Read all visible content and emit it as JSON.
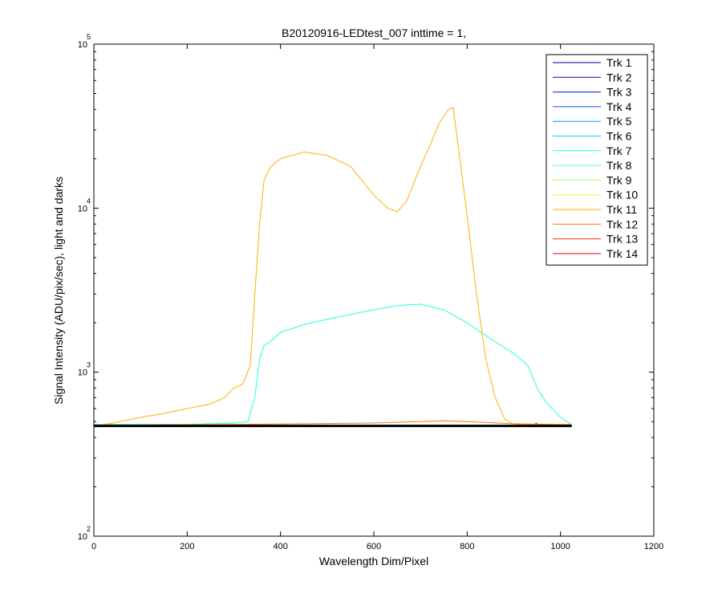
{
  "chart_data": {
    "type": "line",
    "title": "B20120916-LEDtest_007 inttime = 1,",
    "xlabel": "Wavelength Dim/Pixel",
    "ylabel": "Signal Intensity (ADU/pix/sec), light and darks",
    "xlim": [
      0,
      1200
    ],
    "ylim": [
      100,
      100000
    ],
    "yscale": "log",
    "x_ticks": [
      0,
      200,
      400,
      600,
      800,
      1000,
      1200
    ],
    "x_tick_labels": [
      "0",
      "200",
      "400",
      "600",
      "800",
      "1000",
      "1200"
    ],
    "y_ticks": [
      {
        "value": 100,
        "base": "10",
        "exp": "2"
      },
      {
        "value": 1000,
        "base": "10",
        "exp": "3"
      },
      {
        "value": 10000,
        "base": "10",
        "exp": "4"
      },
      {
        "value": 100000,
        "base": "10",
        "exp": "5"
      }
    ],
    "grid": false,
    "legend_position": "top-right",
    "series": [
      {
        "name": "Trk 1",
        "color": "#00008F",
        "x": [
          0,
          1024
        ],
        "y": [
          470,
          470
        ]
      },
      {
        "name": "Trk 2",
        "color": "#0000CF",
        "x": [
          0,
          1024
        ],
        "y": [
          470,
          470
        ]
      },
      {
        "name": "Trk 3",
        "color": "#0010FF",
        "x": [
          0,
          1024
        ],
        "y": [
          470,
          470
        ]
      },
      {
        "name": "Trk 4",
        "color": "#0050FF",
        "x": [
          0,
          1024
        ],
        "y": [
          470,
          470
        ]
      },
      {
        "name": "Trk 5",
        "color": "#0090FF",
        "x": [
          0,
          940,
          948,
          956,
          1024
        ],
        "y": [
          470,
          470,
          490,
          470,
          470
        ]
      },
      {
        "name": "Trk 6",
        "color": "#00D0FF",
        "x": [
          0,
          1024
        ],
        "y": [
          475,
          475
        ]
      },
      {
        "name": "Trk 7",
        "color": "#20FFDF",
        "x": [
          0,
          200,
          300,
          330,
          345,
          355,
          365,
          380,
          400,
          450,
          500,
          550,
          600,
          650,
          700,
          750,
          800,
          850,
          900,
          930,
          950,
          970,
          1000,
          1024
        ],
        "y": [
          480,
          480,
          490,
          500,
          700,
          1200,
          1450,
          1550,
          1750,
          1950,
          2100,
          2250,
          2400,
          2550,
          2600,
          2400,
          2000,
          1600,
          1300,
          1100,
          800,
          650,
          530,
          480
        ]
      },
      {
        "name": "Trk 8",
        "color": "#60FF9F",
        "x": [
          0,
          1024
        ],
        "y": [
          470,
          470
        ]
      },
      {
        "name": "Trk 9",
        "color": "#A0FF5F",
        "x": [
          0,
          1024
        ],
        "y": [
          470,
          470
        ]
      },
      {
        "name": "Trk 10",
        "color": "#E0FF1F",
        "x": [
          0,
          1024
        ],
        "y": [
          470,
          470
        ]
      },
      {
        "name": "Trk 11",
        "color": "#FFB000",
        "x": [
          0,
          40,
          100,
          150,
          200,
          250,
          280,
          300,
          320,
          335,
          345,
          355,
          365,
          380,
          400,
          450,
          500,
          550,
          600,
          630,
          650,
          670,
          700,
          720,
          740,
          760,
          770,
          780,
          800,
          820,
          840,
          860,
          880,
          900,
          1024
        ],
        "y": [
          470,
          490,
          530,
          560,
          600,
          640,
          700,
          800,
          850,
          1100,
          3000,
          8000,
          15000,
          18000,
          20000,
          22000,
          21000,
          18000,
          12000,
          10000,
          9500,
          11000,
          18000,
          24000,
          33000,
          40000,
          41000,
          25000,
          9000,
          3000,
          1200,
          700,
          520,
          480,
          480
        ]
      },
      {
        "name": "Trk 12",
        "color": "#FF7000",
        "x": [
          0,
          300,
          600,
          700,
          750,
          800,
          900,
          1024
        ],
        "y": [
          475,
          480,
          490,
          500,
          505,
          500,
          485,
          478
        ]
      },
      {
        "name": "Trk 13",
        "color": "#FF3000",
        "x": [
          0,
          1024
        ],
        "y": [
          473,
          473
        ]
      },
      {
        "name": "Trk 14",
        "color": "#DF0000",
        "x": [
          0,
          1024
        ],
        "y": [
          472,
          472
        ]
      }
    ]
  }
}
